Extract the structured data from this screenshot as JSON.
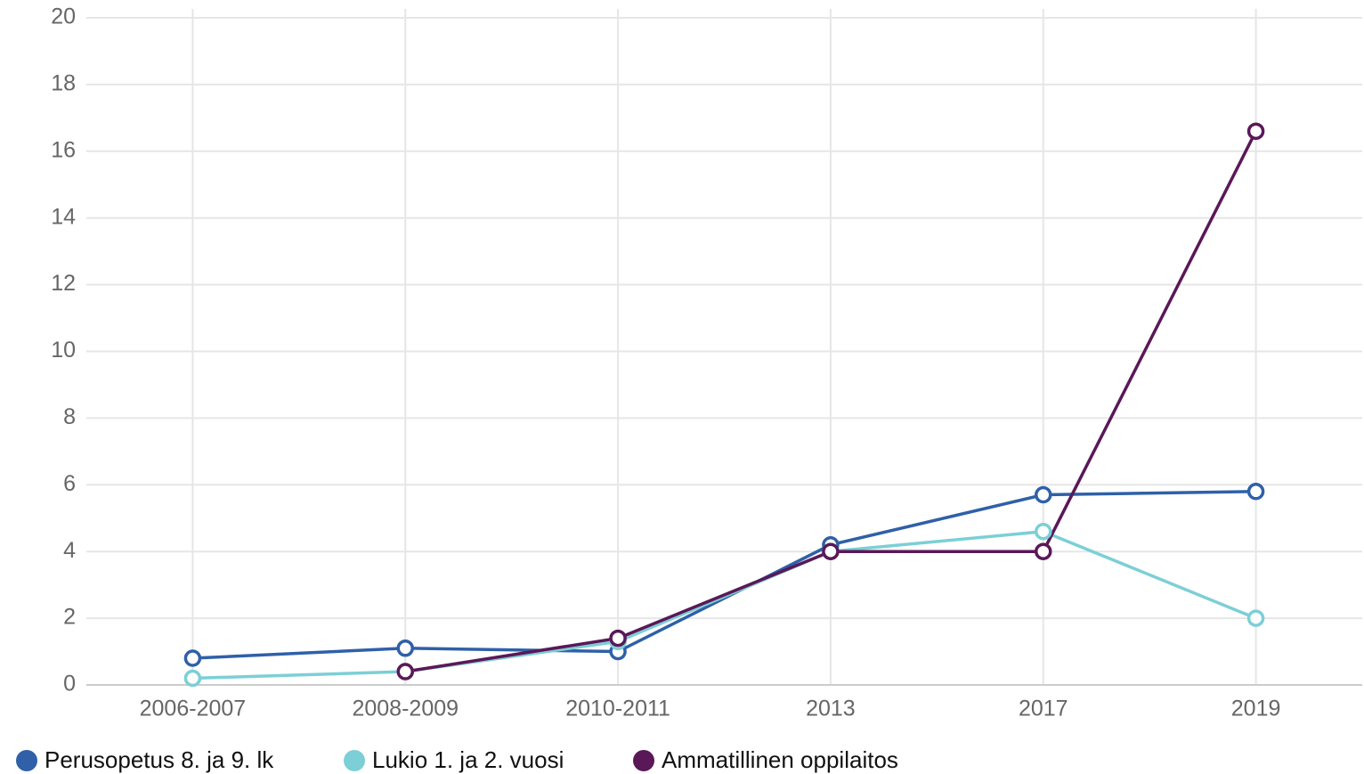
{
  "chart_data": {
    "type": "line",
    "categories": [
      "2006-2007",
      "2008-2009",
      "2010-2011",
      "2013",
      "2017",
      "2019"
    ],
    "series": [
      {
        "name": "Perusopetus 8. ja 9. lk",
        "color": "#2f60a8",
        "values": [
          0.8,
          1.1,
          1.0,
          4.2,
          5.7,
          5.8
        ]
      },
      {
        "name": "Lukio 1. ja 2. vuosi",
        "color": "#7ccfd6",
        "values": [
          0.2,
          0.4,
          1.3,
          4.0,
          4.6,
          2.0
        ]
      },
      {
        "name": "Ammatillinen oppilaitos",
        "color": "#5a1858",
        "values": [
          null,
          0.4,
          1.4,
          4.0,
          4.0,
          16.6
        ]
      }
    ],
    "ylim": [
      0,
      20
    ],
    "yticks": [
      0,
      2,
      4,
      6,
      8,
      10,
      12,
      14,
      16,
      18,
      20
    ],
    "grid": true,
    "legend": "bottom"
  }
}
